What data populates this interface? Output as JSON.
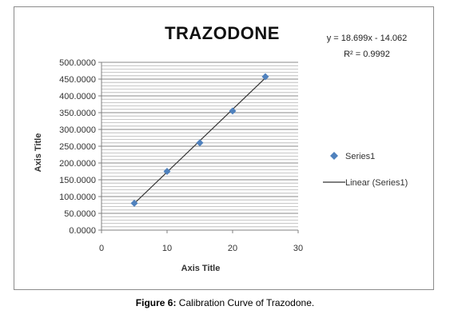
{
  "chart_data": {
    "type": "scatter",
    "title": "TRAZODONE",
    "xlabel": "Axis Title",
    "ylabel": "Axis Title",
    "xlim": [
      0,
      30
    ],
    "ylim": [
      0,
      500
    ],
    "x_ticks": [
      "0",
      "10",
      "20",
      "30"
    ],
    "y_ticks": [
      "0.0000",
      "50.0000",
      "100.0000",
      "150.0000",
      "200.0000",
      "250.0000",
      "300.0000",
      "350.0000",
      "400.0000",
      "450.0000",
      "500.0000"
    ],
    "grid": true,
    "legend_position": "right",
    "series": [
      {
        "name": "Series1",
        "marker": "diamond",
        "color": "#4f81bd",
        "points": [
          {
            "x": 5,
            "y": 80
          },
          {
            "x": 10,
            "y": 175
          },
          {
            "x": 15,
            "y": 260
          },
          {
            "x": 20,
            "y": 355
          },
          {
            "x": 25,
            "y": 457
          }
        ]
      }
    ],
    "trendline": {
      "name": "Linear (Series1)",
      "type": "linear",
      "slope": 18.699,
      "intercept": -14.062,
      "x_range": [
        5,
        25
      ],
      "color": "#333333",
      "equation": "y = 18.699x - 14.062",
      "r_squared_label": "R² = 0.9992"
    }
  },
  "caption": {
    "label": "Figure 6:",
    "text": " Calibration Curve of Trazodone."
  }
}
